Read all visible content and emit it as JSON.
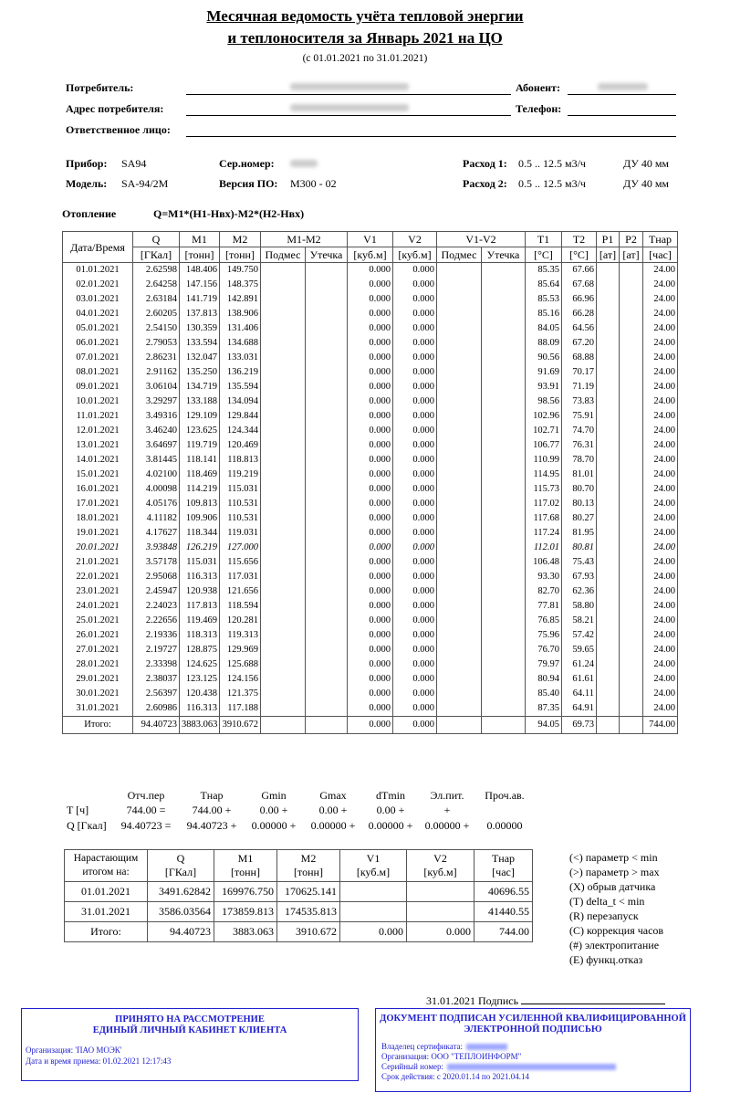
{
  "header": {
    "title_lines": [
      "Месячная ведомость учёта тепловой энергии",
      "и теплоносителя за Январь 2021 на ЦО"
    ],
    "period": "(с 01.01.2021 по 31.01.2021)"
  },
  "info": {
    "consumer": "Потребитель:",
    "subscriber": "Абонент:",
    "address": "Адрес потребителя:",
    "phone": "Телефон:",
    "responsible": "Ответственное лицо:"
  },
  "device": {
    "device_label": "Прибор:",
    "device": "SA94",
    "serial_label": "Сер.номер:",
    "flow1_label": "Расход 1:",
    "flow1": "0.5 .. 12.5 м3/ч",
    "du1": "ДУ 40 мм",
    "model_label": "Модель:",
    "model": "SA-94/2M",
    "version_label": "Версия ПО:",
    "version": "M300 - 02",
    "flow2_label": "Расход 2:",
    "flow2": "0.5 .. 12.5 м3/ч",
    "du2": "ДУ 40 мм"
  },
  "heating": {
    "label": "Отопление",
    "formula": "Q=M1*(H1-Hвх)-M2*(H2-Hвх)"
  },
  "table": {
    "header_top": [
      "Дата/Время",
      "Q",
      "M1",
      "M2",
      "M1-M2",
      "V1",
      "V2",
      "V1-V2",
      "T1",
      "T2",
      "P1",
      "P2",
      "Тнар"
    ],
    "header_units": [
      "[ГКал]",
      "[тонн]",
      "[тонн]",
      "Подмес",
      "Утечка",
      "[куб.м]",
      "[куб.м]",
      "Подмес",
      "Утечка",
      "[°C]",
      "[°C]",
      "[ат]",
      "[ат]",
      "[час]"
    ],
    "rows": [
      [
        "01.01.2021",
        "2.62598",
        "148.406",
        "149.750",
        "0.000",
        "0.000",
        "85.35",
        "67.66",
        "24.00"
      ],
      [
        "02.01.2021",
        "2.64258",
        "147.156",
        "148.375",
        "0.000",
        "0.000",
        "85.64",
        "67.68",
        "24.00"
      ],
      [
        "03.01.2021",
        "2.63184",
        "141.719",
        "142.891",
        "0.000",
        "0.000",
        "85.53",
        "66.96",
        "24.00"
      ],
      [
        "04.01.2021",
        "2.60205",
        "137.813",
        "138.906",
        "0.000",
        "0.000",
        "85.16",
        "66.28",
        "24.00"
      ],
      [
        "05.01.2021",
        "2.54150",
        "130.359",
        "131.406",
        "0.000",
        "0.000",
        "84.05",
        "64.56",
        "24.00"
      ],
      [
        "06.01.2021",
        "2.79053",
        "133.594",
        "134.688",
        "0.000",
        "0.000",
        "88.09",
        "67.20",
        "24.00"
      ],
      [
        "07.01.2021",
        "2.86231",
        "132.047",
        "133.031",
        "0.000",
        "0.000",
        "90.56",
        "68.88",
        "24.00"
      ],
      [
        "08.01.2021",
        "2.91162",
        "135.250",
        "136.219",
        "0.000",
        "0.000",
        "91.69",
        "70.17",
        "24.00"
      ],
      [
        "09.01.2021",
        "3.06104",
        "134.719",
        "135.594",
        "0.000",
        "0.000",
        "93.91",
        "71.19",
        "24.00"
      ],
      [
        "10.01.2021",
        "3.29297",
        "133.188",
        "134.094",
        "0.000",
        "0.000",
        "98.56",
        "73.83",
        "24.00"
      ],
      [
        "11.01.2021",
        "3.49316",
        "129.109",
        "129.844",
        "0.000",
        "0.000",
        "102.96",
        "75.91",
        "24.00"
      ],
      [
        "12.01.2021",
        "3.46240",
        "123.625",
        "124.344",
        "0.000",
        "0.000",
        "102.71",
        "74.70",
        "24.00"
      ],
      [
        "13.01.2021",
        "3.64697",
        "119.719",
        "120.469",
        "0.000",
        "0.000",
        "106.77",
        "76.31",
        "24.00"
      ],
      [
        "14.01.2021",
        "3.81445",
        "118.141",
        "118.813",
        "0.000",
        "0.000",
        "110.99",
        "78.70",
        "24.00"
      ],
      [
        "15.01.2021",
        "4.02100",
        "118.469",
        "119.219",
        "0.000",
        "0.000",
        "114.95",
        "81.01",
        "24.00"
      ],
      [
        "16.01.2021",
        "4.00098",
        "114.219",
        "115.031",
        "0.000",
        "0.000",
        "115.73",
        "80.70",
        "24.00"
      ],
      [
        "17.01.2021",
        "4.05176",
        "109.813",
        "110.531",
        "0.000",
        "0.000",
        "117.02",
        "80.13",
        "24.00"
      ],
      [
        "18.01.2021",
        "4.11182",
        "109.906",
        "110.531",
        "0.000",
        "0.000",
        "117.68",
        "80.27",
        "24.00"
      ],
      [
        "19.01.2021",
        "4.17627",
        "118.344",
        "119.031",
        "0.000",
        "0.000",
        "117.24",
        "81.95",
        "24.00"
      ],
      [
        "20.01.2021",
        "3.93848",
        "126.219",
        "127.000",
        "0.000",
        "0.000",
        "112.01",
        "80.81",
        "24.00"
      ],
      [
        "21.01.2021",
        "3.57178",
        "115.031",
        "115.656",
        "0.000",
        "0.000",
        "106.48",
        "75.43",
        "24.00"
      ],
      [
        "22.01.2021",
        "2.95068",
        "116.313",
        "117.031",
        "0.000",
        "0.000",
        "93.30",
        "67.93",
        "24.00"
      ],
      [
        "23.01.2021",
        "2.45947",
        "120.938",
        "121.656",
        "0.000",
        "0.000",
        "82.70",
        "62.36",
        "24.00"
      ],
      [
        "24.01.2021",
        "2.24023",
        "117.813",
        "118.594",
        "0.000",
        "0.000",
        "77.81",
        "58.80",
        "24.00"
      ],
      [
        "25.01.2021",
        "2.22656",
        "119.469",
        "120.281",
        "0.000",
        "0.000",
        "76.85",
        "58.21",
        "24.00"
      ],
      [
        "26.01.2021",
        "2.19336",
        "118.313",
        "119.313",
        "0.000",
        "0.000",
        "75.96",
        "57.42",
        "24.00"
      ],
      [
        "27.01.2021",
        "2.19727",
        "128.875",
        "129.969",
        "0.000",
        "0.000",
        "76.70",
        "59.65",
        "24.00"
      ],
      [
        "28.01.2021",
        "2.33398",
        "124.625",
        "125.688",
        "0.000",
        "0.000",
        "79.97",
        "61.24",
        "24.00"
      ],
      [
        "29.01.2021",
        "2.38037",
        "123.125",
        "124.156",
        "0.000",
        "0.000",
        "80.94",
        "61.61",
        "24.00"
      ],
      [
        "30.01.2021",
        "2.56397",
        "120.438",
        "121.375",
        "0.000",
        "0.000",
        "85.40",
        "64.11",
        "24.00"
      ],
      [
        "31.01.2021",
        "2.60986",
        "116.313",
        "117.188",
        "0.000",
        "0.000",
        "87.35",
        "64.91",
        "24.00"
      ]
    ],
    "total": [
      "Итого:",
      "94.40723",
      "3883.063",
      "3910.672",
      "0.000",
      "0.000",
      "94.05",
      "69.73",
      "744.00"
    ]
  },
  "summary": {
    "columns": [
      "Отч.пер",
      "Тнар",
      "Gmin",
      "Gmax",
      "dTmin",
      "Эл.пит.",
      "Проч.ав."
    ],
    "t_label": "T [ч]",
    "t_values": [
      "744.00 =",
      "744.00 +",
      "0.00 +",
      "0.00 +",
      "0.00 +",
      "+"
    ],
    "q_label": "Q [Гкал]",
    "q_values": [
      "94.40723 =",
      "94.40723 +",
      "0.00000 +",
      "0.00000 +",
      "0.00000 +",
      "0.00000 +",
      "0.00000"
    ]
  },
  "cumulative": {
    "header_top": [
      "Нарастающим итогом на:",
      "Q",
      "M1",
      "M2",
      "V1",
      "V2",
      "Тнар"
    ],
    "header_units": [
      "[ГКал]",
      "[тонн]",
      "[тонн]",
      "[куб.м]",
      "[куб.м]",
      "[час]"
    ],
    "rows": [
      [
        "01.01.2021",
        "3491.62842",
        "169976.750",
        "170625.141",
        null,
        null,
        "40696.55"
      ],
      [
        "31.01.2021",
        "3586.03564",
        "173859.813",
        "174535.813",
        null,
        null,
        "41440.55"
      ],
      [
        "Итого:",
        "94.40723",
        "3883.063",
        "3910.672",
        "0.000",
        "0.000",
        "744.00"
      ]
    ]
  },
  "legend": [
    "(<) параметр < min",
    "(>) параметр > max",
    "(X) обрыв датчика",
    "(T) delta_t < min",
    "(R) перезапуск",
    "(C) коррекция часов",
    "(#) электропитание",
    "(E) функц.отказ"
  ],
  "signature": "31.01.2021 Подпись",
  "stamp_left": {
    "title_lines": [
      "ПРИНЯТО НА РАССМОТРЕНИЕ",
      "ЕДИНЫЙ ЛИЧНЫЙ КАБИНЕТ КЛИЕНТА"
    ],
    "organization": "Организация: 'ПАО МОЭК'",
    "received": "Дата и время приема: 01.02.2021 12:17:43"
  },
  "stamp_right": {
    "title_lines": [
      "ДОКУМЕНТ ПОДПИСАН УСИЛЕННОЙ КВАЛИФИЦИРОВАННОЙ",
      "ЭЛЕКТРОННОЙ ПОДПИСЬЮ"
    ],
    "owner": "Владелец сертификата:",
    "organization": "Организация: ООО \"ТЕПЛОИНФОРМ\"",
    "serial": "Серийный номер:",
    "validity": "Срок действия: с 2020.01.14 по 2021.04.14"
  }
}
